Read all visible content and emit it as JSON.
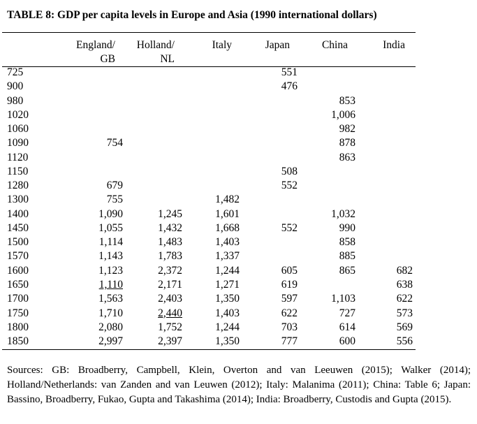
{
  "title": "TABLE 8: GDP per capita levels in Europe and Asia (1990 international dollars)",
  "columns": [
    {
      "line1": "England/",
      "line2": "GB"
    },
    {
      "line1": "Holland/",
      "line2": "NL"
    },
    {
      "line1": "Italy",
      "line2": ""
    },
    {
      "line1": "Japan",
      "line2": ""
    },
    {
      "line1": "China",
      "line2": ""
    },
    {
      "line1": "India",
      "line2": ""
    }
  ],
  "rows": [
    {
      "year": "725",
      "values": [
        "",
        "",
        "",
        "551",
        "",
        ""
      ]
    },
    {
      "year": "900",
      "values": [
        "",
        "",
        "",
        "476",
        "",
        ""
      ]
    },
    {
      "year": "980",
      "values": [
        "",
        "",
        "",
        "",
        "853",
        ""
      ]
    },
    {
      "year": "1020",
      "values": [
        "",
        "",
        "",
        "",
        "1,006",
        ""
      ]
    },
    {
      "year": "1060",
      "values": [
        "",
        "",
        "",
        "",
        "982",
        ""
      ]
    },
    {
      "year": "1090",
      "values": [
        "754",
        "",
        "",
        "",
        "878",
        ""
      ]
    },
    {
      "year": "1120",
      "values": [
        "",
        "",
        "",
        "",
        "863",
        ""
      ]
    },
    {
      "year": "1150",
      "values": [
        "",
        "",
        "",
        "508",
        "",
        ""
      ]
    },
    {
      "year": "1280",
      "values": [
        "679",
        "",
        "",
        "552",
        "",
        ""
      ]
    },
    {
      "year": "1300",
      "values": [
        "755",
        "",
        "1,482",
        "",
        "",
        ""
      ]
    },
    {
      "year": "1400",
      "values": [
        "1,090",
        "1,245",
        "1,601",
        "",
        "1,032",
        ""
      ]
    },
    {
      "year": "1450",
      "values": [
        "1,055",
        "1,432",
        "1,668",
        "552",
        "990",
        ""
      ]
    },
    {
      "year": "1500",
      "values": [
        "1,114",
        "1,483",
        "1,403",
        "",
        "858",
        ""
      ]
    },
    {
      "year": "1570",
      "values": [
        "1,143",
        "1,783",
        "1,337",
        "",
        "885",
        ""
      ]
    },
    {
      "year": "1600",
      "values": [
        "1,123",
        "2,372",
        "1,244",
        "605",
        "865",
        "682"
      ]
    },
    {
      "year": "1650",
      "values": [
        "1,110",
        "2,171",
        "1,271",
        "619",
        "",
        "638"
      ],
      "underline": [
        0
      ]
    },
    {
      "year": "1700",
      "values": [
        "1,563",
        "2,403",
        "1,350",
        "597",
        "1,103",
        "622"
      ]
    },
    {
      "year": "1750",
      "values": [
        "1,710",
        "2,440",
        "1,403",
        "622",
        "727",
        "573"
      ],
      "underline": [
        1
      ]
    },
    {
      "year": "1800",
      "values": [
        "2,080",
        "1,752",
        "1,244",
        "703",
        "614",
        "569"
      ]
    },
    {
      "year": "1850",
      "values": [
        "2,997",
        "2,397",
        "1,350",
        "777",
        "600",
        "556"
      ]
    }
  ],
  "sources": "Sources: GB: Broadberry, Campbell, Klein, Overton and van Leeuwen (2015); Walker (2014); Holland/Netherlands: van Zanden and van Leuwen (2012); Italy: Malanima (2011); China: Table 6; Japan: Bassino, Broadberry, Fukao, Gupta and Takashima (2014); India: Broadberry, Custodis and Gupta (2015)."
}
